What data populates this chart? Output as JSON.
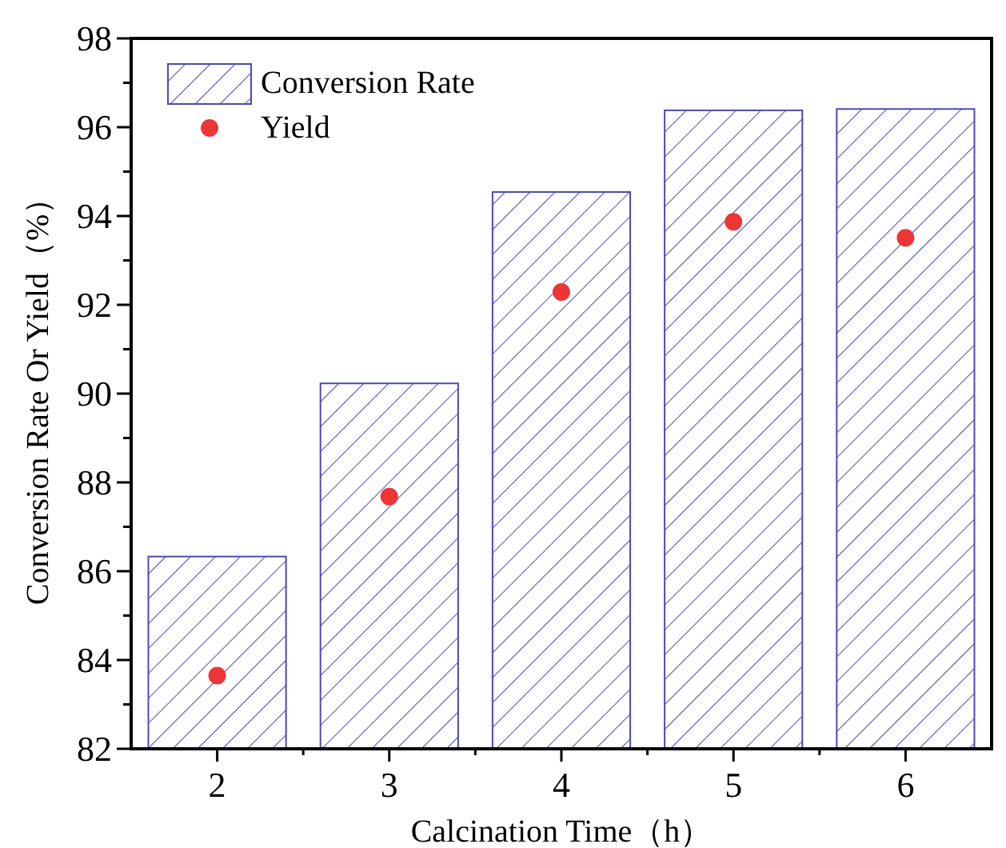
{
  "chart_data": {
    "type": "bar",
    "xlabel": "Calcination Time（h）",
    "ylabel": "Conversion Rate Or Yield（%）",
    "categories": [
      "2",
      "3",
      "4",
      "5",
      "6"
    ],
    "series": [
      {
        "name": "Conversion Rate",
        "color": "#4b4bb4",
        "values": [
          86.33,
          90.23,
          94.54,
          96.38,
          96.41
        ]
      },
      {
        "name": "Yield",
        "type": "scatter",
        "color": "#ee3535",
        "values": [
          83.65,
          87.68,
          92.29,
          93.87,
          93.51
        ]
      }
    ],
    "ylim": [
      82,
      98
    ],
    "yticks": [
      82,
      {
        "value": 83,
        "label": null
      },
      84,
      {
        "value": 85,
        "label": null
      },
      86,
      {
        "value": 87,
        "label": null
      },
      88,
      {
        "value": 89,
        "label": null
      },
      90,
      {
        "value": 91,
        "label": null
      },
      92,
      {
        "value": 93,
        "label": null
      },
      94,
      {
        "value": 95,
        "label": null
      },
      96,
      {
        "value": 97,
        "label": null
      },
      98
    ],
    "legend": "top left",
    "marker": "circle"
  }
}
